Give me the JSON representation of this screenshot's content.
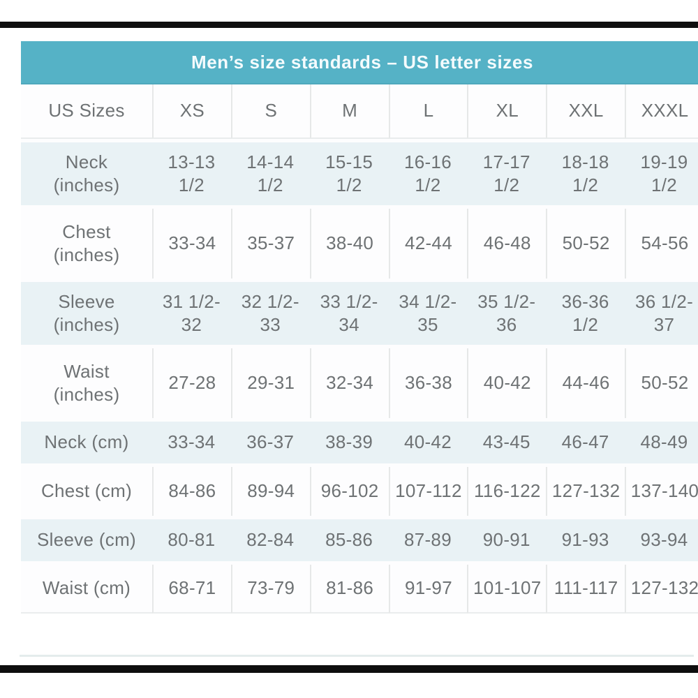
{
  "title_bar": {
    "title": "Men’s size standards – US letter sizes"
  },
  "colors": {
    "header_teal": "#55b2c6",
    "row_blue": "#e9f2f5",
    "text_gray": "#6e7274",
    "frame_black": "#0e0e0e"
  },
  "table": {
    "corner_label": "US Sizes",
    "size_headers": [
      "XS",
      "S",
      "M",
      "L",
      "XL",
      "XXL",
      "XXXL"
    ],
    "rows": [
      {
        "label": "Neck\n(inches)",
        "values": [
          "13-13\n1/2",
          "14-14\n1/2",
          "15-15\n1/2",
          "16-16\n1/2",
          "17-17\n1/2",
          "18-18\n1/2",
          "19-19\n1/2"
        ]
      },
      {
        "label": "Chest\n(inches)",
        "values": [
          "33-34",
          "35-37",
          "38-40",
          "42-44",
          "46-48",
          "50-52",
          "54-56"
        ]
      },
      {
        "label": "Sleeve\n(inches)",
        "values": [
          "31 1/2-\n32",
          "32 1/2-\n33",
          "33 1/2-\n34",
          "34 1/2-\n35",
          "35 1/2-\n36",
          "36-36\n1/2",
          "36 1/2-\n37"
        ]
      },
      {
        "label": "Waist\n(inches)",
        "values": [
          "27-28",
          "29-31",
          "32-34",
          "36-38",
          "40-42",
          "44-46",
          "50-52"
        ]
      },
      {
        "label": "Neck (cm)",
        "values": [
          "33-34",
          "36-37",
          "38-39",
          "40-42",
          "43-45",
          "46-47",
          "48-49"
        ]
      },
      {
        "label": "Chest (cm)",
        "values": [
          "84-86",
          "89-94",
          "96-102",
          "107-112",
          "116-122",
          "127-132",
          "137-140"
        ]
      },
      {
        "label": "Sleeve (cm)",
        "values": [
          "80-81",
          "82-84",
          "85-86",
          "87-89",
          "90-91",
          "91-93",
          "93-94"
        ]
      },
      {
        "label": "Waist (cm)",
        "values": [
          "68-71",
          "73-79",
          "81-86",
          "91-97",
          "101-107",
          "111-117",
          "127-132"
        ]
      }
    ]
  },
  "chart_data": {
    "type": "table",
    "title": "Men’s size standards – US letter sizes",
    "columns": [
      "US Sizes",
      "XS",
      "S",
      "M",
      "L",
      "XL",
      "XXL",
      "XXXL"
    ],
    "rows": [
      [
        "Neck (inches)",
        "13-13 1/2",
        "14-14 1/2",
        "15-15 1/2",
        "16-16 1/2",
        "17-17 1/2",
        "18-18 1/2",
        "19-19 1/2"
      ],
      [
        "Chest (inches)",
        "33-34",
        "35-37",
        "38-40",
        "42-44",
        "46-48",
        "50-52",
        "54-56"
      ],
      [
        "Sleeve (inches)",
        "31 1/2-32",
        "32 1/2-33",
        "33 1/2-34",
        "34 1/2-35",
        "35 1/2-36",
        "36-36 1/2",
        "36 1/2-37"
      ],
      [
        "Waist (inches)",
        "27-28",
        "29-31",
        "32-34",
        "36-38",
        "40-42",
        "44-46",
        "50-52"
      ],
      [
        "Neck (cm)",
        "33-34",
        "36-37",
        "38-39",
        "40-42",
        "43-45",
        "46-47",
        "48-49"
      ],
      [
        "Chest (cm)",
        "84-86",
        "89-94",
        "96-102",
        "107-112",
        "116-122",
        "127-132",
        "137-140"
      ],
      [
        "Sleeve (cm)",
        "80-81",
        "82-84",
        "85-86",
        "87-89",
        "90-91",
        "91-93",
        "93-94"
      ],
      [
        "Waist (cm)",
        "68-71",
        "73-79",
        "81-86",
        "91-97",
        "101-107",
        "111-117",
        "127-132"
      ]
    ],
    "layout": {
      "alternating_row_shading": true,
      "shaded_rows": [
        "Neck (inches)",
        "Sleeve (inches)",
        "Neck (cm)",
        "Sleeve (cm)"
      ]
    }
  }
}
